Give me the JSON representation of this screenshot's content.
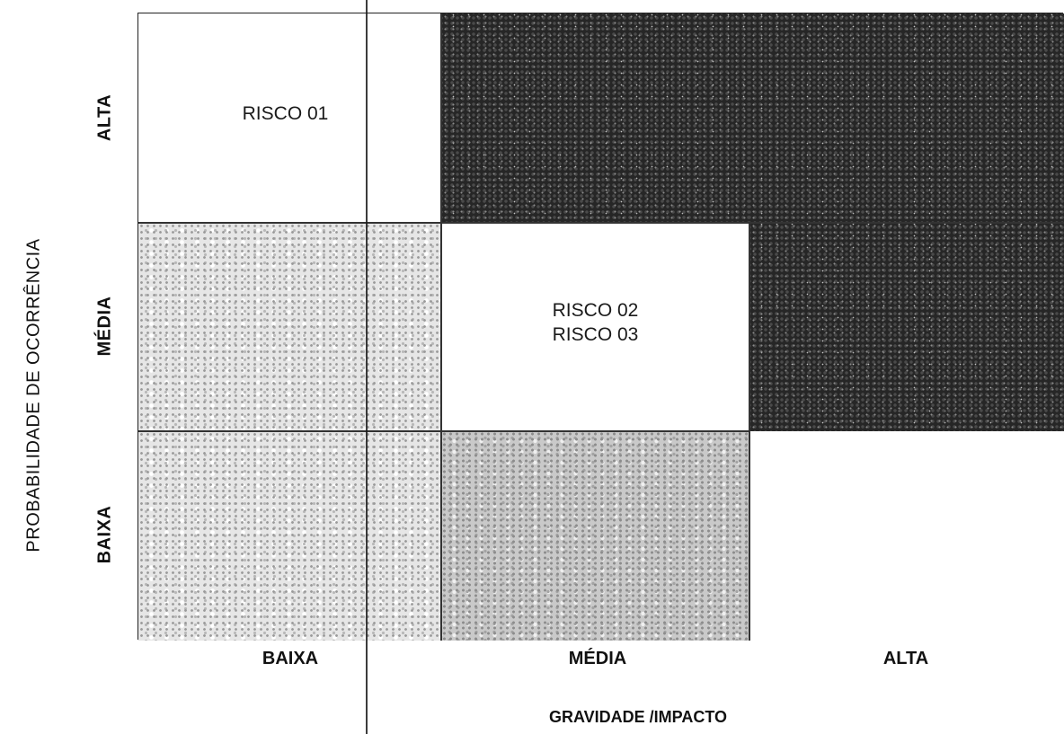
{
  "y_axis": {
    "title": "PROBABILIDADE DE OCORRÊNCIA",
    "levels": [
      "ALTA",
      "MÉDIA",
      "BAIXA"
    ]
  },
  "x_axis": {
    "title": "GRAVIDADE /IMPACTO",
    "levels": [
      "BAIXA",
      "MÉDIA",
      "ALTA"
    ]
  },
  "matrix": {
    "rows": [
      {
        "probability": "ALTA",
        "cells": [
          {
            "shade": "white",
            "risks": [
              "RISCO 01"
            ]
          },
          {
            "shade": "dark",
            "risks": []
          },
          {
            "shade": "dark",
            "risks": []
          }
        ]
      },
      {
        "probability": "MÉDIA",
        "cells": [
          {
            "shade": "light",
            "risks": []
          },
          {
            "shade": "white",
            "risks": [
              "RISCO 02",
              "RISCO 03"
            ]
          },
          {
            "shade": "dark",
            "risks": []
          }
        ]
      },
      {
        "probability": "BAIXA",
        "cells": [
          {
            "shade": "light",
            "risks": []
          },
          {
            "shade": "medium",
            "risks": []
          },
          {
            "shade": "white",
            "risks": []
          }
        ]
      }
    ]
  },
  "colors": {
    "white": "#ffffff",
    "light": "#e6e6e6",
    "medium": "#c9c9c9",
    "dark": "#262626"
  }
}
